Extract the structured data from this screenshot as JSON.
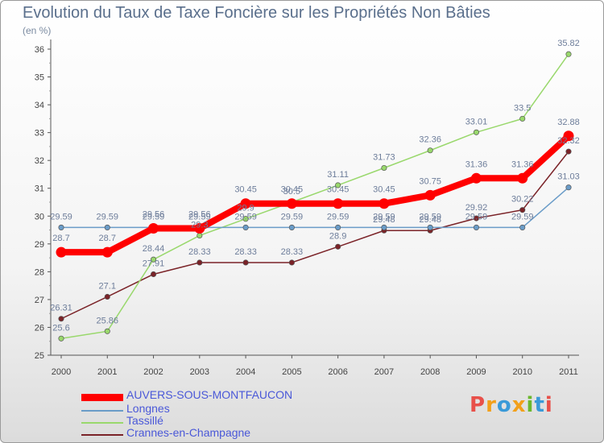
{
  "header": {
    "title": "Evolution du Taux de Taxe Foncière sur les Propriétés Non Bâties",
    "unit": "(en %)"
  },
  "logo": {
    "letters": [
      "P",
      "r",
      "o",
      "x",
      "i",
      "t",
      "i"
    ],
    "colors": [
      "#e8504a",
      "#f2a01a",
      "#3a9ad8",
      "#f2a01a",
      "#6ab82e",
      "#3a9ad8",
      "#e8504a"
    ]
  },
  "chart_data": {
    "type": "line",
    "title": "Evolution du Taux de Taxe Foncière sur les Propriétés Non Bâties",
    "ylabel": "(en %)",
    "x": [
      "2000",
      "2001",
      "2002",
      "2003",
      "2004",
      "2005",
      "2006",
      "2007",
      "2008",
      "2009",
      "2010",
      "2011"
    ],
    "ylim": [
      25,
      36
    ],
    "yticks": [
      25,
      26,
      27,
      28,
      29,
      30,
      31,
      32,
      33,
      34,
      35,
      36
    ],
    "grid": false,
    "legend": "bottom-left",
    "series": [
      {
        "name": "AUVERS-SOUS-MONTFAUCON",
        "color": "#ff0000",
        "values": [
          28.7,
          28.7,
          29.56,
          29.56,
          30.45,
          30.45,
          30.45,
          30.45,
          30.75,
          31.36,
          31.36,
          32.88
        ],
        "labels": [
          "28.7",
          "28.7",
          "29.56",
          "29.56",
          "30.45",
          "30.45",
          "30.45",
          "30.45",
          "30.75",
          "31.36",
          "31.36",
          "32.88"
        ]
      },
      {
        "name": "Longnes",
        "color": "#6a9cc8",
        "values": [
          29.59,
          29.59,
          29.59,
          29.59,
          29.59,
          29.59,
          29.59,
          29.59,
          29.59,
          29.59,
          29.59,
          31.03
        ],
        "labels": [
          "29.59",
          "29.59",
          "29.59",
          "29.59",
          "29.59",
          "29.59",
          "29.59",
          "29.59",
          "29.59",
          "29.59",
          "29.59",
          "31.03"
        ]
      },
      {
        "name": "Tassillé",
        "color": "#99d86c",
        "values": [
          25.6,
          25.86,
          28.44,
          29.3,
          29.9,
          30.5,
          31.11,
          31.73,
          32.36,
          33.01,
          33.5,
          35.82
        ],
        "labels": [
          "25.6",
          "25.86",
          "28.44",
          "29.3",
          "29.9",
          "30.5",
          "31.11",
          "31.73",
          "32.36",
          "33.01",
          "33.5",
          "35.82"
        ]
      },
      {
        "name": "Crannes-en-Champagne",
        "color": "#7b2328",
        "values": [
          26.31,
          27.1,
          27.91,
          28.33,
          28.33,
          28.33,
          28.9,
          29.48,
          29.48,
          29.92,
          30.22,
          32.32
        ],
        "labels": [
          "26.31",
          "27.1",
          "27.91",
          "28.33",
          "28.33",
          "28.33",
          "28.9",
          "29.48",
          "29.48",
          "29.92",
          "30.22",
          "32.32"
        ]
      }
    ]
  }
}
